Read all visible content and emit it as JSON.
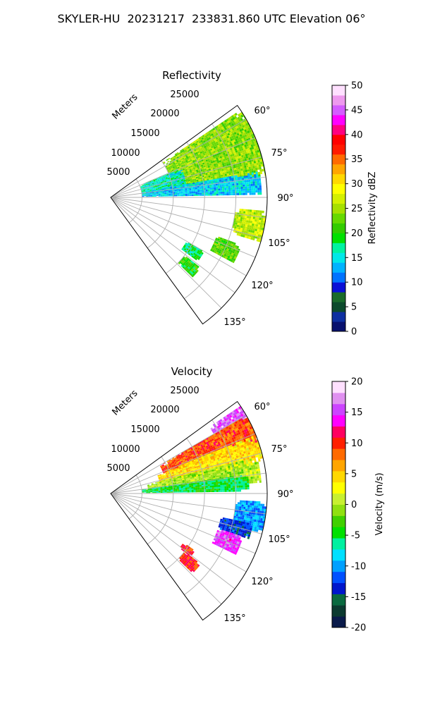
{
  "figure": {
    "title": "SKYLER-HU  20231217  233831.860 UTC Elevation 06°"
  },
  "panels": [
    {
      "title": "Reflectivity",
      "range_axis_label": "Meters",
      "range_ticks": [
        "5000",
        "10000",
        "15000",
        "20000",
        "25000"
      ],
      "azimuth_ticks": [
        "60°",
        "75°",
        "90°",
        "105°",
        "120°",
        "135°"
      ],
      "colorbar": {
        "label": "Reflectivity dBZ",
        "ticks": [
          "0",
          "5",
          "10",
          "15",
          "20",
          "25",
          "30",
          "35",
          "40",
          "45",
          "50"
        ],
        "min": 0,
        "max": 50
      }
    },
    {
      "title": "Velocity",
      "range_axis_label": "Meters",
      "range_ticks": [
        "5000",
        "10000",
        "15000",
        "20000",
        "25000"
      ],
      "azimuth_ticks": [
        "60°",
        "75°",
        "90°",
        "105°",
        "120°",
        "135°"
      ],
      "colorbar": {
        "label": "Velocity (m/s)",
        "ticks": [
          "-20",
          "-15",
          "-10",
          "-5",
          "0",
          "5",
          "10",
          "15",
          "20"
        ],
        "min": -20,
        "max": 20
      }
    }
  ],
  "chart_data": [
    {
      "type": "heatmap",
      "projection": "polar-sector",
      "title": "Reflectivity",
      "azimuth_range_deg": [
        54,
        144
      ],
      "range_limits_m": [
        0,
        25000
      ],
      "grid": true,
      "units": "dBZ",
      "value_range": [
        0,
        50
      ],
      "echo_regions": [
        {
          "az_deg": [
            56,
            82
          ],
          "range_m": [
            10000,
            26000
          ],
          "value": 24
        },
        {
          "az_deg": [
            67,
            84
          ],
          "range_m": [
            5000,
            12000
          ],
          "value": 16
        },
        {
          "az_deg": [
            80,
            89
          ],
          "range_m": [
            5000,
            24000
          ],
          "value": 14
        },
        {
          "az_deg": [
            95,
            106
          ],
          "range_m": [
            20000,
            25000
          ],
          "value": 26
        },
        {
          "az_deg": [
            110,
            118
          ],
          "range_m": [
            18000,
            22000
          ],
          "value": 22
        },
        {
          "az_deg": [
            120,
            126
          ],
          "range_m": [
            14000,
            17000
          ],
          "value": 18
        },
        {
          "az_deg": [
            128,
            134
          ],
          "range_m": [
            15000,
            18000
          ],
          "value": 20
        }
      ]
    },
    {
      "type": "heatmap",
      "projection": "polar-sector",
      "title": "Velocity",
      "azimuth_range_deg": [
        54,
        144
      ],
      "range_limits_m": [
        0,
        25000
      ],
      "grid": true,
      "units": "m/s",
      "value_range": [
        -20,
        20
      ],
      "echo_regions": [
        {
          "az_deg": [
            56,
            62
          ],
          "range_m": [
            19000,
            26000
          ],
          "value": 16
        },
        {
          "az_deg": [
            60,
            70
          ],
          "range_m": [
            9000,
            26000
          ],
          "value": 9
        },
        {
          "az_deg": [
            68,
            78
          ],
          "range_m": [
            8000,
            25000
          ],
          "value": 4
        },
        {
          "az_deg": [
            76,
            86
          ],
          "range_m": [
            6000,
            24000
          ],
          "value": 0
        },
        {
          "az_deg": [
            82,
            89
          ],
          "range_m": [
            5000,
            22000
          ],
          "value": -5
        },
        {
          "az_deg": [
            93,
            104
          ],
          "range_m": [
            20000,
            25000
          ],
          "value": -10
        },
        {
          "az_deg": [
            102,
            108
          ],
          "range_m": [
            18000,
            23000
          ],
          "value": -13
        },
        {
          "az_deg": [
            108,
            116
          ],
          "range_m": [
            18000,
            22000
          ],
          "value": 15
        },
        {
          "az_deg": [
            124,
            128
          ],
          "range_m": [
            14000,
            16000
          ],
          "value": 10
        },
        {
          "az_deg": [
            128,
            134
          ],
          "range_m": [
            15000,
            18000
          ],
          "value": 10
        }
      ]
    }
  ],
  "colors": {
    "grid": "#b0b0b0",
    "frame": "#000000",
    "reflectivity_scale": [
      "#08116e",
      "#0d2fa0",
      "#0c4a2c",
      "#1a6b2a",
      "#0a0fd6",
      "#0073ff",
      "#00b3ff",
      "#00e8e8",
      "#00f3a0",
      "#00e000",
      "#33cc00",
      "#66d900",
      "#a6e000",
      "#d4f000",
      "#ffff00",
      "#ffd800",
      "#ffa500",
      "#ff6a00",
      "#ff1a00",
      "#ff0000",
      "#ff0080",
      "#ff00ff",
      "#d45cff",
      "#ee99ee",
      "#ffe0ff"
    ],
    "velocity_scale": [
      "#0a1a4a",
      "#0c3a30",
      "#0a6a40",
      "#0016cc",
      "#0050ff",
      "#00a0ff",
      "#00e0ff",
      "#00f0a0",
      "#00e000",
      "#40d000",
      "#90e010",
      "#c8f030",
      "#ffff00",
      "#ffd800",
      "#ffa500",
      "#ff6a00",
      "#ff2000",
      "#ff0060",
      "#ff00ff",
      "#cc44ff",
      "#e090f0",
      "#ffe0ff"
    ]
  }
}
